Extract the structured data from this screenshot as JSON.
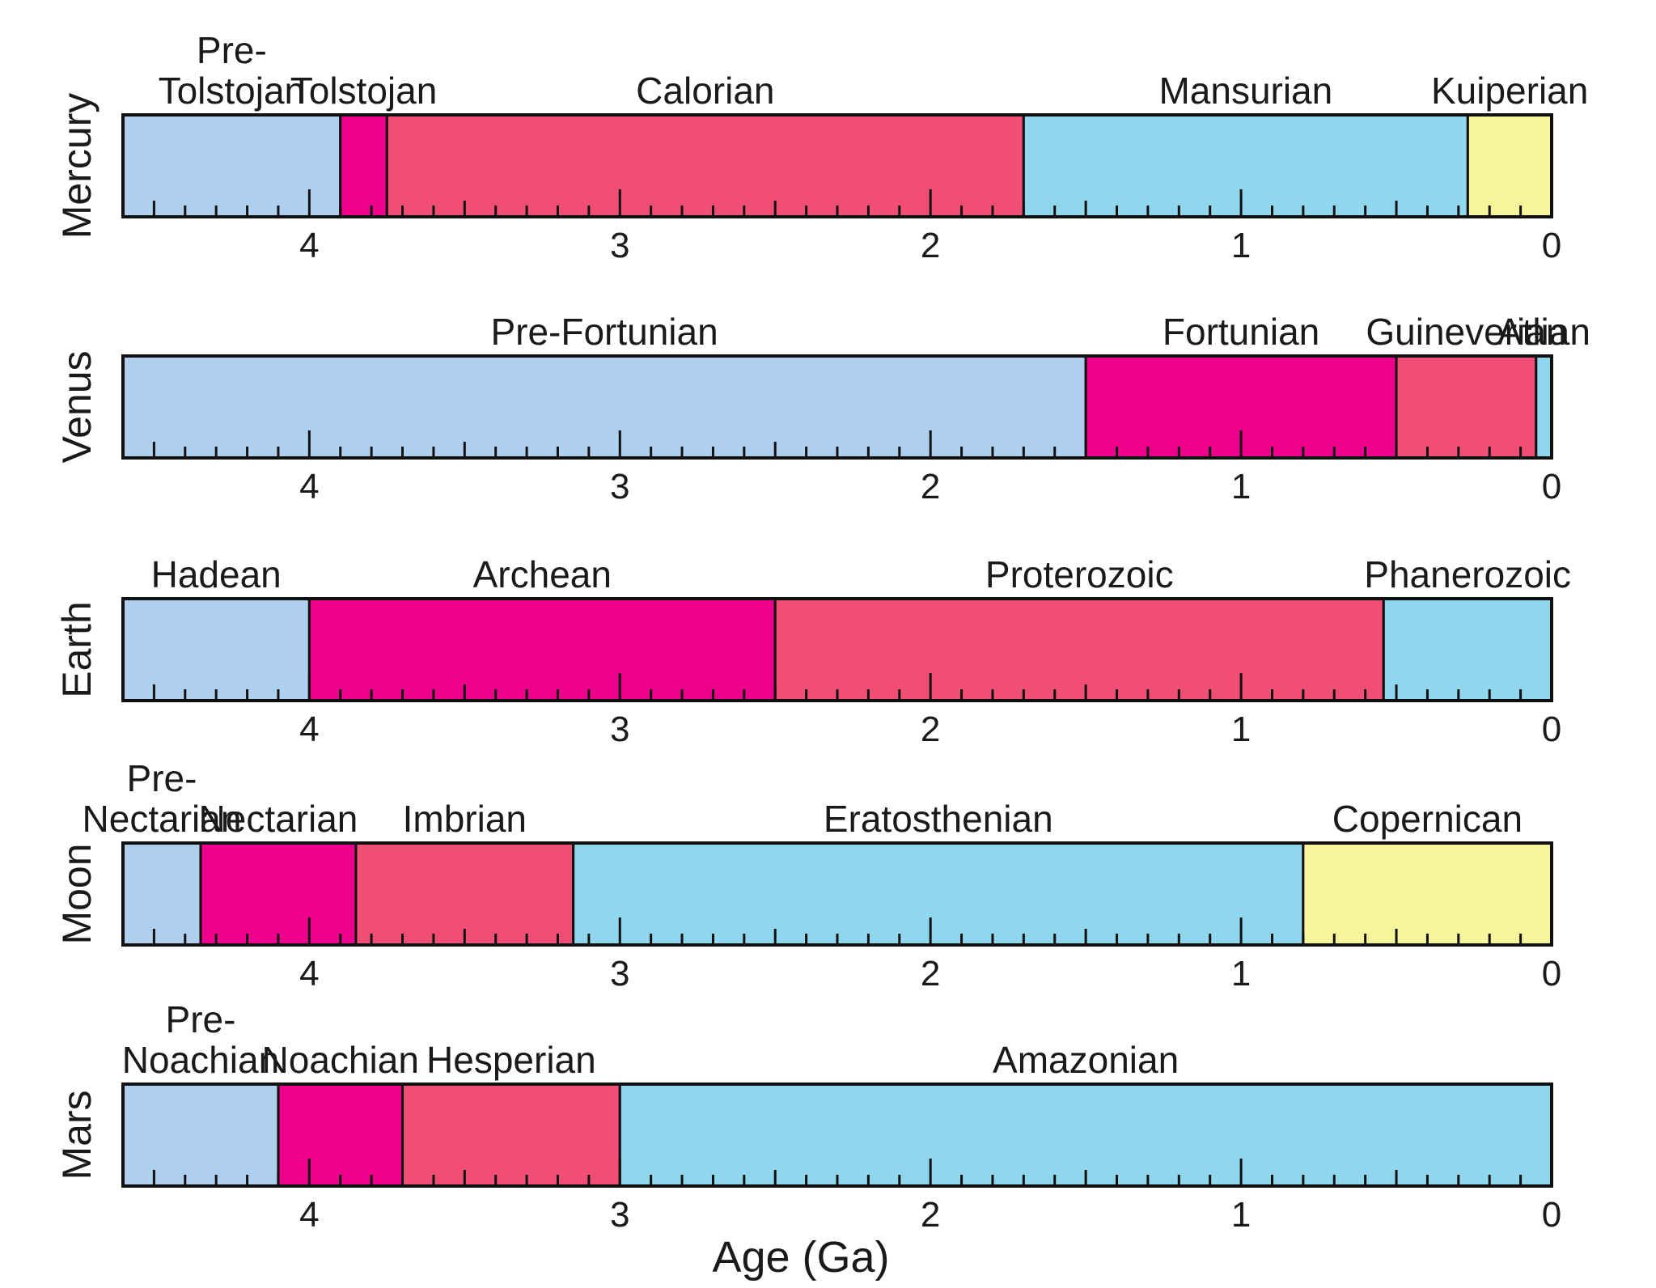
{
  "chart_data": {
    "type": "timeline",
    "xlabel": "Age (Ga)",
    "x_direction": "reversed",
    "xlim": [
      4.6,
      0
    ],
    "major_ticks": [
      4,
      3,
      2,
      1,
      0
    ],
    "minor_tick_step": 0.1,
    "colors": {
      "light_blue": "#aecfee",
      "magenta": "#ec008c",
      "red_pink": "#f04e74",
      "cyan": "#90d7ee",
      "yellow": "#f6f59c"
    },
    "rows": [
      {
        "planet": "Mercury",
        "segments": [
          {
            "name": "Pre-\nTolstojan",
            "start": 4.6,
            "end": 3.9,
            "color": "light_blue"
          },
          {
            "name": "Tolstojan",
            "start": 3.9,
            "end": 3.75,
            "color": "magenta"
          },
          {
            "name": "Calorian",
            "start": 3.75,
            "end": 1.7,
            "color": "red_pink"
          },
          {
            "name": "Mansurian",
            "start": 1.7,
            "end": 0.27,
            "color": "cyan"
          },
          {
            "name": "Kuiperian",
            "start": 0.27,
            "end": 0,
            "color": "yellow"
          }
        ]
      },
      {
        "planet": "Venus",
        "segments": [
          {
            "name": "Pre-Fortunian",
            "start": 4.6,
            "end": 1.5,
            "color": "light_blue"
          },
          {
            "name": "Fortunian",
            "start": 1.5,
            "end": 0.5,
            "color": "magenta"
          },
          {
            "name": "Guineverian",
            "start": 0.5,
            "end": 0.05,
            "color": "red_pink"
          },
          {
            "name": "Atlian",
            "start": 0.05,
            "end": 0,
            "color": "cyan"
          }
        ]
      },
      {
        "planet": "Earth",
        "segments": [
          {
            "name": "Hadean",
            "start": 4.6,
            "end": 4.0,
            "color": "light_blue"
          },
          {
            "name": "Archean",
            "start": 4.0,
            "end": 2.5,
            "color": "magenta"
          },
          {
            "name": "Proterozoic",
            "start": 2.5,
            "end": 0.541,
            "color": "red_pink"
          },
          {
            "name": "Phanerozoic",
            "start": 0.541,
            "end": 0,
            "color": "cyan"
          }
        ]
      },
      {
        "planet": "Moon",
        "segments": [
          {
            "name": "Pre-\nNectarian",
            "start": 4.6,
            "end": 4.35,
            "color": "light_blue"
          },
          {
            "name": "Nectarian",
            "start": 4.35,
            "end": 3.85,
            "color": "magenta"
          },
          {
            "name": "Imbrian",
            "start": 3.85,
            "end": 3.15,
            "color": "red_pink"
          },
          {
            "name": "Eratosthenian",
            "start": 3.15,
            "end": 0.8,
            "color": "cyan"
          },
          {
            "name": "Copernican",
            "start": 0.8,
            "end": 0,
            "color": "yellow"
          }
        ]
      },
      {
        "planet": "Mars",
        "segments": [
          {
            "name": "Pre-\nNoachian",
            "start": 4.6,
            "end": 4.1,
            "color": "light_blue"
          },
          {
            "name": "Noachian",
            "start": 4.1,
            "end": 3.7,
            "color": "magenta"
          },
          {
            "name": "Hesperian",
            "start": 3.7,
            "end": 3.0,
            "color": "red_pink"
          },
          {
            "name": "Amazonian",
            "start": 3.0,
            "end": 0,
            "color": "cyan"
          }
        ]
      }
    ]
  }
}
